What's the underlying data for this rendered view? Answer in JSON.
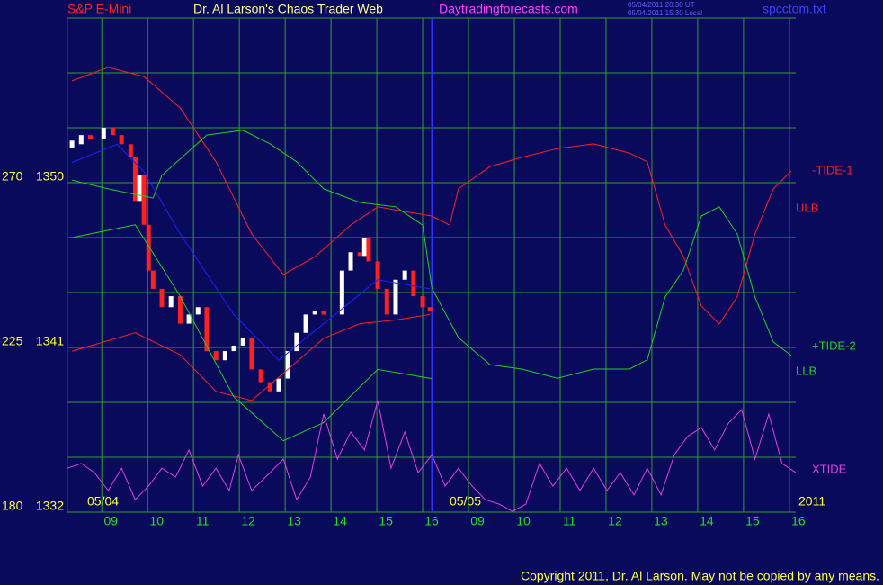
{
  "header": {
    "symbol": "S&P E-Mini",
    "site_title": "Dr. Al Larson's Chaos Trader Web",
    "url": "Daytradingforecasts.com",
    "timestamp_ut": "05/04/2011 20:30 UT",
    "timestamp_local": "05/04/2011 15:30 Local",
    "file": "spcctom.txt"
  },
  "chart_data": {
    "type": "line",
    "xlim": [
      -0.75,
      15.14
    ],
    "ylim": [
      1332,
      1359
    ],
    "y2lim": [
      180,
      315
    ],
    "yticks": [
      1332,
      1341,
      1350
    ],
    "yticks_minor": [
      1332,
      1335,
      1338,
      1341,
      1344,
      1347,
      1350,
      1353,
      1356,
      1359
    ],
    "y2ticks": [
      180,
      225,
      270
    ],
    "xticks": [
      {
        "value": 0,
        "label": "09"
      },
      {
        "value": 1,
        "label": "10"
      },
      {
        "value": 2,
        "label": "11"
      },
      {
        "value": 3,
        "label": "12"
      },
      {
        "value": 4,
        "label": "13"
      },
      {
        "value": 5,
        "label": "14"
      },
      {
        "value": 6,
        "label": "15"
      },
      {
        "value": 7,
        "label": "16"
      },
      {
        "value": 8,
        "label": "09"
      },
      {
        "value": 9,
        "label": "10"
      },
      {
        "value": 10,
        "label": "11"
      },
      {
        "value": 11,
        "label": "12"
      },
      {
        "value": 12,
        "label": "13"
      },
      {
        "value": 13,
        "label": "14"
      },
      {
        "value": 14,
        "label": "15"
      },
      {
        "value": 15,
        "label": "16"
      }
    ],
    "grid": true,
    "grid_color": "#2f9e2f",
    "day_break": 7.2,
    "date_labels": [
      "05/04",
      "05/05",
      "2011"
    ],
    "series": [
      {
        "style": "bars",
        "up_color": "#ffffff",
        "down_color": "#ff2020",
        "x": [
          -0.65,
          -0.45,
          -0.25,
          0.04,
          0.24,
          0.43,
          0.63,
          0.73,
          0.82,
          0.92,
          1.02,
          1.12,
          1.31,
          1.51,
          1.71,
          1.9,
          2.1,
          2.29,
          2.49,
          2.69,
          2.88,
          3.08,
          3.27,
          3.47,
          3.67,
          3.86,
          4.06,
          4.25,
          4.45,
          4.65,
          4.84,
          5.04,
          5.24,
          5.43,
          5.63,
          5.73,
          5.82,
          6.02,
          6.22,
          6.41,
          6.61,
          6.8,
          7.0,
          7.16
        ],
        "values": [
          1352.1,
          1352.6,
          1352.4,
          1353.0,
          1352.6,
          1352.1,
          1351.4,
          1349.0,
          1350.4,
          1347.7,
          1345.2,
          1344.2,
          1343.2,
          1343.8,
          1342.3,
          1342.8,
          1343.2,
          1340.8,
          1340.3,
          1340.8,
          1341.1,
          1341.5,
          1339.8,
          1339.1,
          1338.6,
          1339.3,
          1340.8,
          1341.8,
          1342.8,
          1343.0,
          1342.8,
          1342.8,
          1345.2,
          1346.2,
          1346.0,
          1347.0,
          1345.7,
          1344.2,
          1342.8,
          1344.7,
          1345.2,
          1343.8,
          1343.2,
          1343.0
        ]
      },
      {
        "style": "line",
        "color": "#2020ff",
        "x": [
          -0.65,
          0.33,
          0.92,
          1.71,
          2.88,
          3.86,
          4.84,
          6.02,
          7.16
        ],
        "values": [
          1351.1,
          1352.1,
          1350.6,
          1347.2,
          1342.8,
          1340.3,
          1342.3,
          1344.7,
          1344.2
        ]
      },
      {
        "name": "-TIDE-1",
        "style": "line",
        "color": "#ff2020",
        "axis": "y2",
        "x": [
          -0.65,
          0.14,
          0.92,
          1.71,
          2.49,
          3.27,
          3.96,
          4.65,
          5.43,
          6.02,
          6.61,
          7.2,
          7.59,
          7.78,
          8.47,
          9.16,
          9.94,
          10.73,
          11.51,
          11.9,
          12.29,
          12.69,
          13.08,
          13.47,
          13.86,
          14.25,
          14.65,
          15.04
        ],
        "values": [
          297.8,
          301.5,
          299.0,
          290.4,
          275.7,
          256.0,
          244.9,
          249.8,
          258.4,
          263.4,
          262.1,
          260.9,
          258.4,
          268.3,
          274.4,
          276.9,
          279.3,
          280.6,
          278.1,
          275.7,
          258.4,
          249.8,
          236.3,
          231.4,
          238.8,
          256.0,
          268.3,
          273.2
        ]
      },
      {
        "name": "ULB",
        "style": "line",
        "color": "#ff2020",
        "x": [
          -0.65,
          0.73,
          1.71,
          2.49,
          3.27,
          4.06,
          4.84,
          5.63,
          6.41,
          7.16
        ],
        "values": [
          1340.8,
          1341.8,
          1340.6,
          1338.6,
          1338.1,
          1339.8,
          1341.5,
          1342.3,
          1342.5,
          1342.8
        ]
      },
      {
        "name": "+TIDE-2",
        "style": "line",
        "color": "#20d020",
        "axis": "y2",
        "x": [
          -0.65,
          0.14,
          1.12,
          1.31,
          2.29,
          3.08,
          3.67,
          4.25,
          4.84,
          5.63,
          6.41,
          7.0,
          7.2,
          7.78,
          8.47,
          9.16,
          9.94,
          10.73,
          11.51,
          11.9,
          12.29,
          12.69,
          13.08,
          13.47,
          13.86,
          14.25,
          14.65,
          15.04
        ],
        "values": [
          270.7,
          268.3,
          265.8,
          272.0,
          283.0,
          284.3,
          280.6,
          275.7,
          268.3,
          264.6,
          263.4,
          258.4,
          241.2,
          227.7,
          220.3,
          219.1,
          216.6,
          219.1,
          219.1,
          221.6,
          238.8,
          246.1,
          260.9,
          263.4,
          256.0,
          238.8,
          226.5,
          222.8
        ]
      },
      {
        "name": "LLB",
        "style": "line",
        "color": "#20d020",
        "x": [
          -0.65,
          0.73,
          1.71,
          2.88,
          3.96,
          4.84,
          6.02,
          7.2
        ],
        "values": [
          1347.0,
          1347.7,
          1343.8,
          1338.3,
          1335.9,
          1336.9,
          1339.8,
          1339.3
        ]
      },
      {
        "name": "XTIDE",
        "style": "line",
        "color": "#e040e0",
        "axis": "y2",
        "x": [
          -0.75,
          -0.45,
          -0.16,
          0.14,
          0.43,
          0.73,
          1.02,
          1.31,
          1.61,
          1.9,
          2.2,
          2.49,
          2.78,
          2.98,
          3.27,
          3.67,
          3.96,
          4.25,
          4.55,
          4.84,
          5.14,
          5.43,
          5.73,
          6.02,
          6.31,
          6.61,
          6.9,
          7.2,
          7.49,
          7.78,
          8.08,
          8.37,
          8.67,
          8.96,
          9.25,
          9.55,
          9.84,
          10.14,
          10.43,
          10.73,
          11.02,
          11.31,
          11.61,
          11.9,
          12.2,
          12.49,
          12.78,
          13.08,
          13.37,
          13.67,
          13.96,
          14.25,
          14.55,
          14.84,
          15.14
        ],
        "values": [
          192.0,
          193.3,
          190.8,
          185.9,
          192.0,
          183.4,
          187.1,
          192.0,
          189.6,
          197.0,
          187.1,
          192.0,
          185.9,
          195.7,
          185.9,
          190.8,
          194.5,
          183.4,
          189.6,
          206.8,
          194.5,
          201.9,
          197.0,
          210.5,
          192.0,
          201.9,
          190.8,
          195.7,
          187.1,
          192.0,
          187.1,
          183.4,
          182.2,
          180.2,
          182.2,
          193.3,
          187.1,
          192.0,
          185.9,
          192.0,
          185.9,
          190.8,
          184.7,
          192.0,
          184.7,
          195.7,
          200.7,
          203.1,
          197.0,
          204.3,
          208.0,
          194.5,
          206.8,
          193.3,
          190.8
        ]
      }
    ]
  },
  "footer": "Copyright 2011, Dr. Al Larson. May not be copied by any means."
}
